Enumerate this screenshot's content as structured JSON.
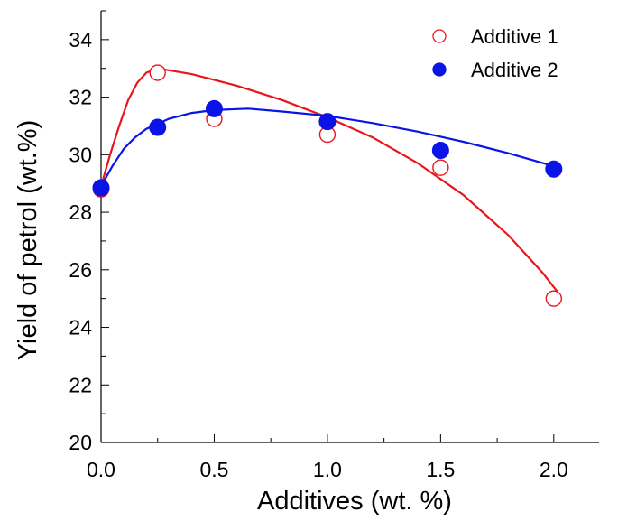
{
  "chart_data": {
    "type": "scatter",
    "title": "",
    "xlabel": "Additives (wt. %)",
    "ylabel": "Yield of petrol (wt.%)",
    "xlim": [
      0,
      2.2
    ],
    "ylim": [
      20,
      35
    ],
    "xticks": [
      0.0,
      0.5,
      1.0,
      1.5,
      2.0
    ],
    "xtick_labels": [
      "0.0",
      "0.5",
      "1.0",
      "1.5",
      "2.0"
    ],
    "yticks": [
      20,
      22,
      24,
      26,
      28,
      30,
      32,
      34
    ],
    "ytick_labels": [
      "20",
      "22",
      "24",
      "26",
      "28",
      "30",
      "32",
      "34"
    ],
    "grid": false,
    "legend_position": "top-right",
    "series": [
      {
        "name": "Additive 1",
        "marker": "open-circle",
        "color": "#e8161b",
        "x": [
          0.0,
          0.25,
          0.5,
          1.0,
          1.5,
          2.0
        ],
        "y": [
          28.8,
          32.85,
          31.25,
          30.7,
          29.55,
          25.0
        ],
        "fit_curve": [
          [
            0.0,
            28.9
          ],
          [
            0.04,
            30.0
          ],
          [
            0.08,
            31.0
          ],
          [
            0.12,
            31.9
          ],
          [
            0.16,
            32.5
          ],
          [
            0.2,
            32.85
          ],
          [
            0.25,
            33.0
          ],
          [
            0.4,
            32.8
          ],
          [
            0.6,
            32.4
          ],
          [
            0.8,
            31.9
          ],
          [
            1.0,
            31.3
          ],
          [
            1.2,
            30.6
          ],
          [
            1.4,
            29.7
          ],
          [
            1.6,
            28.6
          ],
          [
            1.8,
            27.2
          ],
          [
            1.95,
            25.9
          ],
          [
            2.02,
            25.2
          ]
        ]
      },
      {
        "name": "Additive 2",
        "marker": "filled-circle",
        "color": "#0a14e6",
        "x": [
          0.0,
          0.25,
          0.5,
          1.0,
          1.5,
          2.0
        ],
        "y": [
          28.85,
          30.95,
          31.6,
          31.15,
          30.15,
          29.5
        ],
        "fit_curve": [
          [
            0.0,
            28.9
          ],
          [
            0.05,
            29.6
          ],
          [
            0.1,
            30.2
          ],
          [
            0.15,
            30.6
          ],
          [
            0.2,
            30.9
          ],
          [
            0.3,
            31.25
          ],
          [
            0.4,
            31.45
          ],
          [
            0.5,
            31.55
          ],
          [
            0.65,
            31.6
          ],
          [
            0.8,
            31.5
          ],
          [
            1.0,
            31.35
          ],
          [
            1.2,
            31.1
          ],
          [
            1.4,
            30.8
          ],
          [
            1.6,
            30.45
          ],
          [
            1.8,
            30.05
          ],
          [
            2.0,
            29.6
          ],
          [
            2.02,
            29.55
          ]
        ]
      }
    ]
  }
}
